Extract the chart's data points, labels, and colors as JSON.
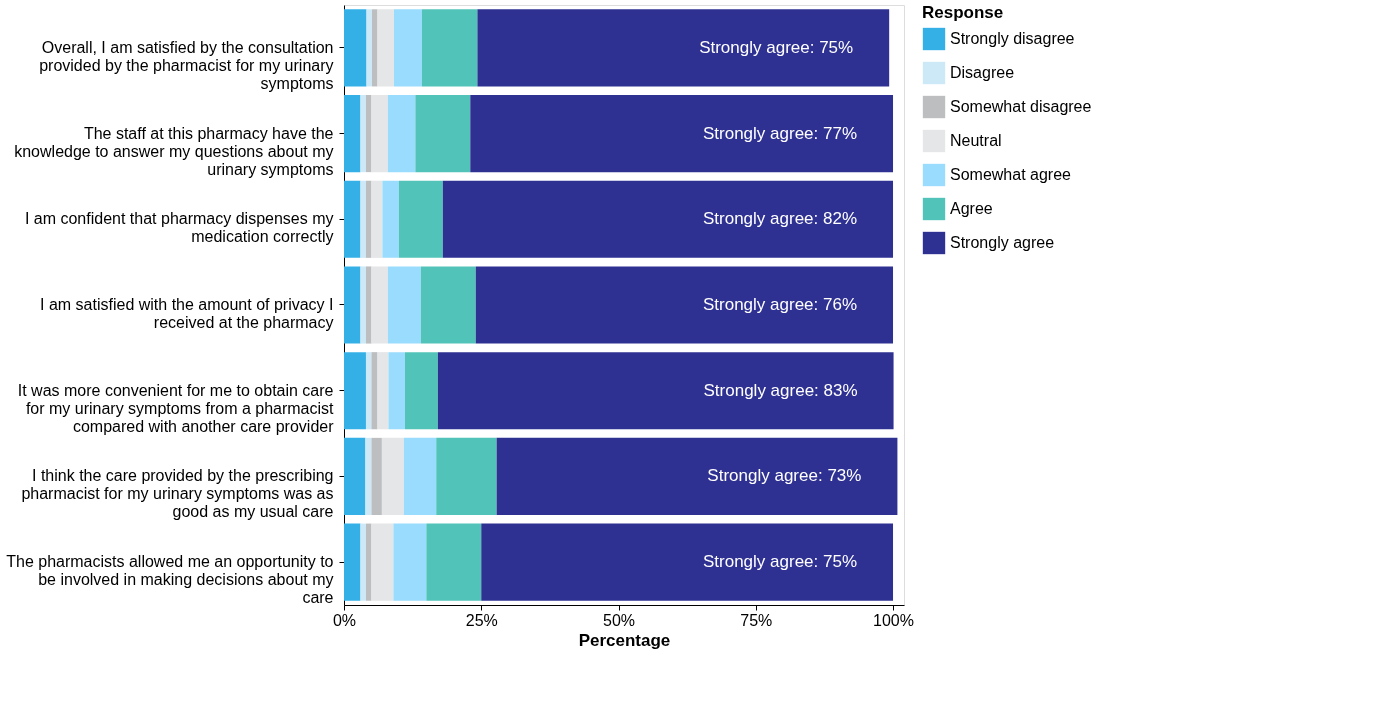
{
  "chart_data": {
    "type": "bar",
    "orientation": "horizontal",
    "stacked": true,
    "categories": [
      "Overall, I am satisfied by the consultation provided by the pharmacist for my urinary symptoms",
      "The staff at this pharmacy have the knowledge to answer my questions about my urinary symptoms",
      "I am confident that pharmacy dispenses my medication correctly",
      "I am satisfied with the amount of privacy I received at the pharmacy",
      "It was more convenient for me to obtain care for my urinary symptoms from a pharmacist compared with another care provider",
      "I think the care provided by the prescribing pharmacist for my urinary symptoms was as good as my usual care",
      "The pharmacists allowed me an opportunity to be involved in making decisions about my care"
    ],
    "xlabel": "Percentage",
    "legend_title": "Response",
    "legend": "top right",
    "xlim": [
      0,
      102
    ],
    "xticks": [
      {
        "value": 0,
        "label": "0%"
      },
      {
        "value": 25,
        "label": "25%"
      },
      {
        "value": 50,
        "label": "50%"
      },
      {
        "value": 75,
        "label": "75%"
      },
      {
        "value": 100,
        "label": "100%"
      }
    ],
    "series": [
      {
        "name": "Strongly disagree",
        "color": "#35b0e6",
        "values": [
          4.1,
          3,
          3,
          3,
          4,
          3.9,
          3
        ]
      },
      {
        "name": "Disagree",
        "color": "#cde9f8",
        "values": [
          1,
          1,
          1,
          1,
          1,
          1.1,
          1
        ]
      },
      {
        "name": "Somewhat disagree",
        "color": "#bdbec0",
        "values": [
          1,
          1,
          1,
          1,
          1.1,
          1.9,
          1
        ]
      },
      {
        "name": "Neutral",
        "color": "#e5e6e7",
        "values": [
          3,
          3,
          2,
          3,
          2,
          4,
          4
        ]
      },
      {
        "name": "Somewhat agree",
        "color": "#99dcfd",
        "values": [
          5.1,
          5,
          3,
          6,
          3,
          5.9,
          6
        ]
      },
      {
        "name": "Agree",
        "color": "#52c3b9",
        "values": [
          10.1,
          10,
          8,
          10,
          6,
          11,
          10
        ]
      },
      {
        "name": "Strongly agree",
        "color": "#2e3192",
        "values": [
          75,
          77,
          82,
          76,
          83,
          73,
          75
        ],
        "value_labels": [
          "Strongly agree: 75%",
          "Strongly agree: 77%",
          "Strongly agree: 82%",
          "Strongly agree: 76%",
          "Strongly agree: 83%",
          "Strongly agree: 73%",
          "Strongly agree: 75%"
        ]
      }
    ]
  }
}
